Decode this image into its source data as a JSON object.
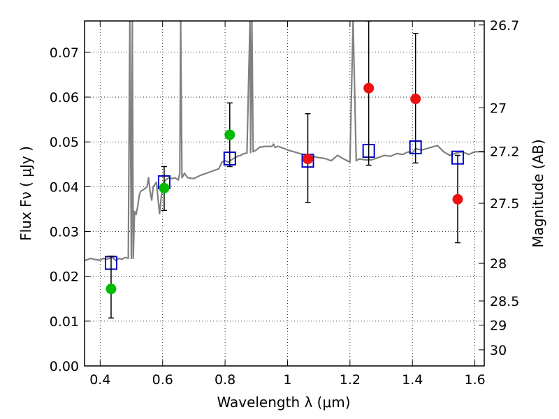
{
  "chart_data": {
    "type": "scatter",
    "title": "",
    "xlabel": "Wavelength  λ (μm)",
    "ylabel": "Flux  Fν  ( μJy )",
    "ylabel_right": "Magnitude (AB)",
    "xlim": [
      0.35,
      1.63
    ],
    "ylim": [
      0.0,
      0.077
    ],
    "x_ticks": [
      0.4,
      0.6,
      0.8,
      1.0,
      1.2,
      1.4,
      1.6
    ],
    "x_tick_labels": [
      "0.4",
      "0.6",
      "0.8",
      "1",
      "1.2",
      "1.4",
      "1.6"
    ],
    "y_ticks": [
      0.0,
      0.01,
      0.02,
      0.03,
      0.04,
      0.05,
      0.06,
      0.07
    ],
    "y_tick_labels": [
      "0.00",
      "0.01",
      "0.02",
      "0.03",
      "0.04",
      "0.05",
      "0.06",
      "0.07"
    ],
    "right_ticks": [
      {
        "flux": 0.0761,
        "label": "26.7"
      },
      {
        "flux": 0.0576,
        "label": "27"
      },
      {
        "flux": 0.0479,
        "label": "27.2"
      },
      {
        "flux": 0.0363,
        "label": "27.5"
      },
      {
        "flux": 0.0229,
        "label": "28"
      },
      {
        "flux": 0.0145,
        "label": "28.5"
      },
      {
        "flux": 0.0091,
        "label": "29"
      },
      {
        "flux": 0.0036,
        "label": "30"
      }
    ],
    "grid": true,
    "grid_style": "dotted",
    "colors": {
      "spectrum": "#808080",
      "model": "#0000cc",
      "green": "#00bb00",
      "red": "#ee1111",
      "errorbar": "#000000"
    },
    "series": [
      {
        "marker": "line",
        "color": "spectrum",
        "x": [
          0.35,
          0.37,
          0.38,
          0.39,
          0.4,
          0.41,
          0.42,
          0.43,
          0.44,
          0.45,
          0.46,
          0.47,
          0.48,
          0.49,
          0.495,
          0.5,
          0.503,
          0.506,
          0.51,
          0.515,
          0.52,
          0.525,
          0.53,
          0.54,
          0.55,
          0.555,
          0.56,
          0.565,
          0.57,
          0.58,
          0.59,
          0.6,
          0.61,
          0.62,
          0.63,
          0.64,
          0.65,
          0.655,
          0.658,
          0.662,
          0.67,
          0.68,
          0.7,
          0.72,
          0.74,
          0.76,
          0.78,
          0.79,
          0.8,
          0.81,
          0.82,
          0.83,
          0.84,
          0.85,
          0.86,
          0.87,
          0.88,
          0.882,
          0.886,
          0.89,
          0.9,
          0.91,
          0.93,
          0.95,
          0.955,
          0.96,
          0.97,
          0.99,
          1.0,
          1.02,
          1.04,
          1.06,
          1.08,
          1.1,
          1.12,
          1.14,
          1.16,
          1.18,
          1.2,
          1.21,
          1.22,
          1.23,
          1.25,
          1.27,
          1.29,
          1.31,
          1.33,
          1.35,
          1.37,
          1.38,
          1.39,
          1.4,
          1.41,
          1.43,
          1.45,
          1.46,
          1.47,
          1.48,
          1.49,
          1.5,
          1.52,
          1.54,
          1.56,
          1.58,
          1.6,
          1.63
        ],
        "y": [
          0.0235,
          0.024,
          0.0238,
          0.0237,
          0.0236,
          0.024,
          0.0238,
          0.024,
          0.0242,
          0.0235,
          0.024,
          0.0238,
          0.0242,
          0.024,
          0.077,
          0.024,
          0.077,
          0.024,
          0.0345,
          0.0338,
          0.0355,
          0.038,
          0.039,
          0.0394,
          0.04,
          0.042,
          0.039,
          0.037,
          0.04,
          0.041,
          0.034,
          0.0405,
          0.0415,
          0.042,
          0.0418,
          0.042,
          0.0415,
          0.043,
          0.077,
          0.042,
          0.043,
          0.042,
          0.0418,
          0.0425,
          0.043,
          0.0435,
          0.044,
          0.0455,
          0.0458,
          0.0455,
          0.046,
          0.0464,
          0.0468,
          0.047,
          0.0474,
          0.0475,
          0.077,
          0.0476,
          0.077,
          0.0478,
          0.0482,
          0.0488,
          0.049,
          0.049,
          0.0495,
          0.0488,
          0.049,
          0.0485,
          0.0482,
          0.0478,
          0.0474,
          0.047,
          0.0468,
          0.0465,
          0.0463,
          0.0458,
          0.047,
          0.0462,
          0.0455,
          0.077,
          0.0458,
          0.0462,
          0.046,
          0.046,
          0.0465,
          0.047,
          0.0468,
          0.0474,
          0.0472,
          0.0476,
          0.0478,
          0.0475,
          0.0485,
          0.0482,
          0.0486,
          0.0488,
          0.049,
          0.0492,
          0.0485,
          0.0478,
          0.047,
          0.0475,
          0.0478,
          0.0472,
          0.0478,
          0.0478
        ]
      },
      {
        "marker": "open-square",
        "color": "model",
        "x": [
          0.435,
          0.605,
          0.815,
          1.065,
          1.26,
          1.41,
          1.545
        ],
        "y": [
          0.023,
          0.041,
          0.0463,
          0.0458,
          0.048,
          0.0488,
          0.0465
        ]
      },
      {
        "marker": "filled-circle",
        "color": "green",
        "x": [
          0.435,
          0.605,
          0.815
        ],
        "y": [
          0.0172,
          0.0397,
          0.0516
        ],
        "yerr_low": [
          0.0107,
          0.0347,
          0.0445
        ],
        "yerr_high": [
          0.0245,
          0.0445,
          0.0587
        ]
      },
      {
        "marker": "filled-circle",
        "color": "red",
        "x": [
          1.065,
          1.26,
          1.41,
          1.545
        ],
        "y": [
          0.0462,
          0.062,
          0.0596,
          0.0372
        ],
        "yerr_low": [
          0.0365,
          0.0448,
          0.0453,
          0.0275
        ],
        "yerr_high": [
          0.0563,
          0.077,
          0.0742,
          0.047
        ]
      }
    ]
  }
}
